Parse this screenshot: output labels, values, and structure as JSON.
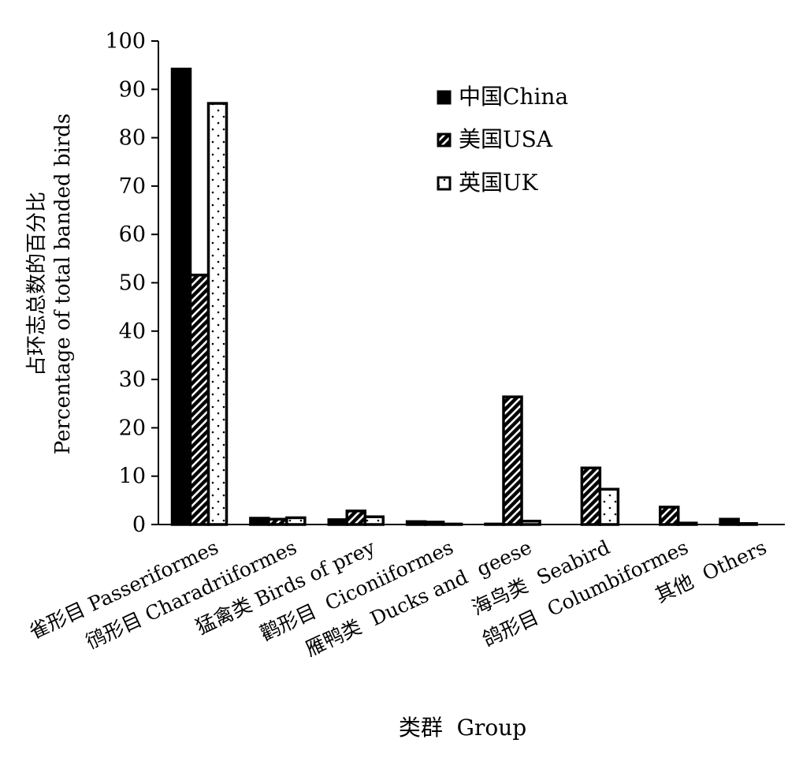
{
  "chart_data": {
    "type": "bar",
    "xlabel": "类群  Group",
    "ylabel_cn": "占环志总数的百分比",
    "ylabel_en": "Percentage of total banded birds",
    "ylim": [
      0,
      100
    ],
    "yticks": [
      "0",
      "10",
      "20",
      "30",
      "40",
      "50",
      "60",
      "70",
      "80",
      "90",
      "100"
    ],
    "grid": false,
    "legend_position": "top-right",
    "categories": [
      "雀形目 Passeriformes",
      "鸻形目 Charadriiformes",
      "猛禽类 Birds of prey",
      "鹳形目  Ciconiiformes",
      "雁鸭类  Ducks and  geese",
      "海鸟类  Seabird",
      "鸽形目  Columbiformes",
      "其他  Others"
    ],
    "series": [
      {
        "name": "中国China",
        "pattern": "solid",
        "values": [
          94.2,
          1.3,
          1.0,
          0.6,
          0.1,
          0.0,
          0.0,
          1.1
        ]
      },
      {
        "name": "美国USA",
        "pattern": "hatch",
        "values": [
          51.6,
          1.1,
          2.8,
          0.5,
          26.4,
          11.7,
          3.6,
          0.2
        ]
      },
      {
        "name": "英国UK",
        "pattern": "dotted",
        "values": [
          87.1,
          1.4,
          1.6,
          0.1,
          0.7,
          7.3,
          0.3,
          0.0
        ]
      }
    ]
  }
}
